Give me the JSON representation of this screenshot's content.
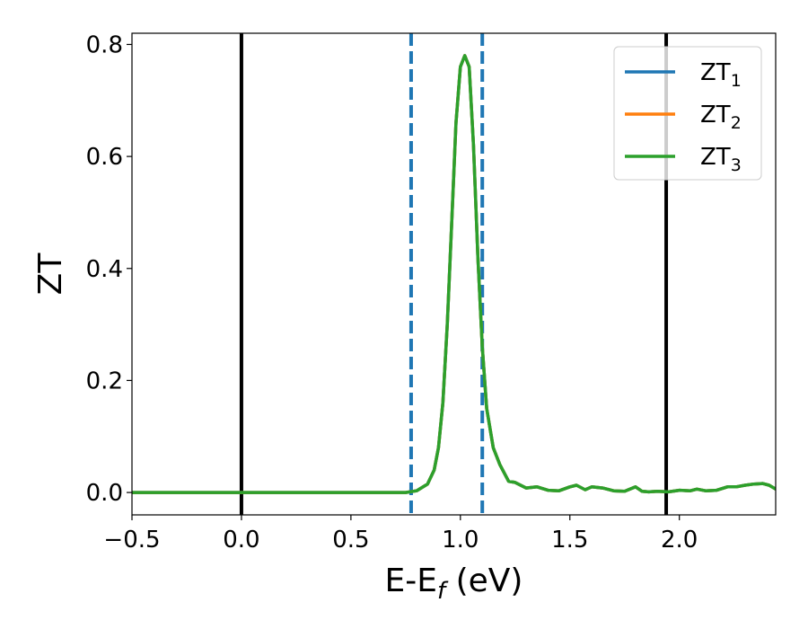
{
  "chart_data": {
    "type": "line",
    "xlabel": "E-E",
    "xlabel_sub": "f",
    "xlabel_unit": " (eV)",
    "ylabel": "ZT",
    "xlim": [
      -0.5,
      2.44
    ],
    "ylim": [
      -0.04,
      0.82
    ],
    "x_ticks": [
      -0.5,
      0.0,
      0.5,
      1.0,
      1.5,
      2.0
    ],
    "x_tick_labels": [
      "−0.5",
      "0.0",
      "0.5",
      "1.0",
      "1.5",
      "2.0"
    ],
    "y_ticks": [
      0.0,
      0.2,
      0.4,
      0.6,
      0.8
    ],
    "y_tick_labels": [
      "0.0",
      "0.2",
      "0.4",
      "0.6",
      "0.8"
    ],
    "grid": false,
    "legend_position": "top-right",
    "vertical_lines": [
      {
        "x": 0.0,
        "style": "solid",
        "color": "#000000"
      },
      {
        "x": 1.94,
        "style": "solid",
        "color": "#000000"
      },
      {
        "x": 0.775,
        "style": "dashed",
        "color": "#1f77b4"
      },
      {
        "x": 1.1,
        "style": "dashed",
        "color": "#1f77b4"
      }
    ],
    "x": [
      -0.5,
      0.0,
      0.5,
      0.75,
      0.8,
      0.85,
      0.88,
      0.9,
      0.92,
      0.94,
      0.96,
      0.98,
      1.0,
      1.02,
      1.04,
      1.06,
      1.08,
      1.1,
      1.12,
      1.15,
      1.18,
      1.22,
      1.25,
      1.3,
      1.35,
      1.4,
      1.45,
      1.5,
      1.53,
      1.57,
      1.6,
      1.65,
      1.7,
      1.75,
      1.8,
      1.83,
      1.86,
      1.9,
      1.95,
      2.0,
      2.05,
      2.08,
      2.12,
      2.17,
      2.22,
      2.26,
      2.3,
      2.34,
      2.38,
      2.41,
      2.44
    ],
    "series": [
      {
        "name": "ZT",
        "name_sub": "1",
        "color": "#1f77b4",
        "values": [
          0.0,
          0.0,
          0.0,
          0.0,
          0.003,
          0.015,
          0.04,
          0.08,
          0.16,
          0.3,
          0.48,
          0.66,
          0.76,
          0.78,
          0.76,
          0.62,
          0.42,
          0.26,
          0.15,
          0.08,
          0.05,
          0.02,
          0.018,
          0.008,
          0.01,
          0.004,
          0.003,
          0.01,
          0.013,
          0.005,
          0.01,
          0.008,
          0.003,
          0.002,
          0.01,
          0.002,
          0.001,
          0.002,
          0.001,
          0.004,
          0.003,
          0.006,
          0.003,
          0.004,
          0.01,
          0.01,
          0.013,
          0.015,
          0.016,
          0.013,
          0.006
        ]
      },
      {
        "name": "ZT",
        "name_sub": "2",
        "color": "#ff7f0e",
        "values": [
          0.0,
          0.0,
          0.0,
          0.0,
          0.003,
          0.015,
          0.04,
          0.08,
          0.16,
          0.3,
          0.48,
          0.66,
          0.76,
          0.78,
          0.76,
          0.62,
          0.42,
          0.26,
          0.15,
          0.08,
          0.05,
          0.02,
          0.018,
          0.008,
          0.01,
          0.004,
          0.003,
          0.01,
          0.013,
          0.005,
          0.01,
          0.008,
          0.003,
          0.002,
          0.01,
          0.002,
          0.001,
          0.002,
          0.001,
          0.004,
          0.003,
          0.006,
          0.003,
          0.004,
          0.01,
          0.01,
          0.013,
          0.015,
          0.016,
          0.013,
          0.006
        ]
      },
      {
        "name": "ZT",
        "name_sub": "3",
        "color": "#2ca02c",
        "values": [
          0.0,
          0.0,
          0.0,
          0.0,
          0.003,
          0.015,
          0.04,
          0.08,
          0.16,
          0.3,
          0.48,
          0.66,
          0.76,
          0.78,
          0.76,
          0.62,
          0.42,
          0.26,
          0.15,
          0.08,
          0.05,
          0.02,
          0.018,
          0.008,
          0.01,
          0.004,
          0.003,
          0.01,
          0.013,
          0.005,
          0.01,
          0.008,
          0.003,
          0.002,
          0.01,
          0.002,
          0.001,
          0.002,
          0.001,
          0.004,
          0.003,
          0.006,
          0.003,
          0.004,
          0.01,
          0.01,
          0.013,
          0.015,
          0.016,
          0.013,
          0.006
        ]
      }
    ]
  }
}
